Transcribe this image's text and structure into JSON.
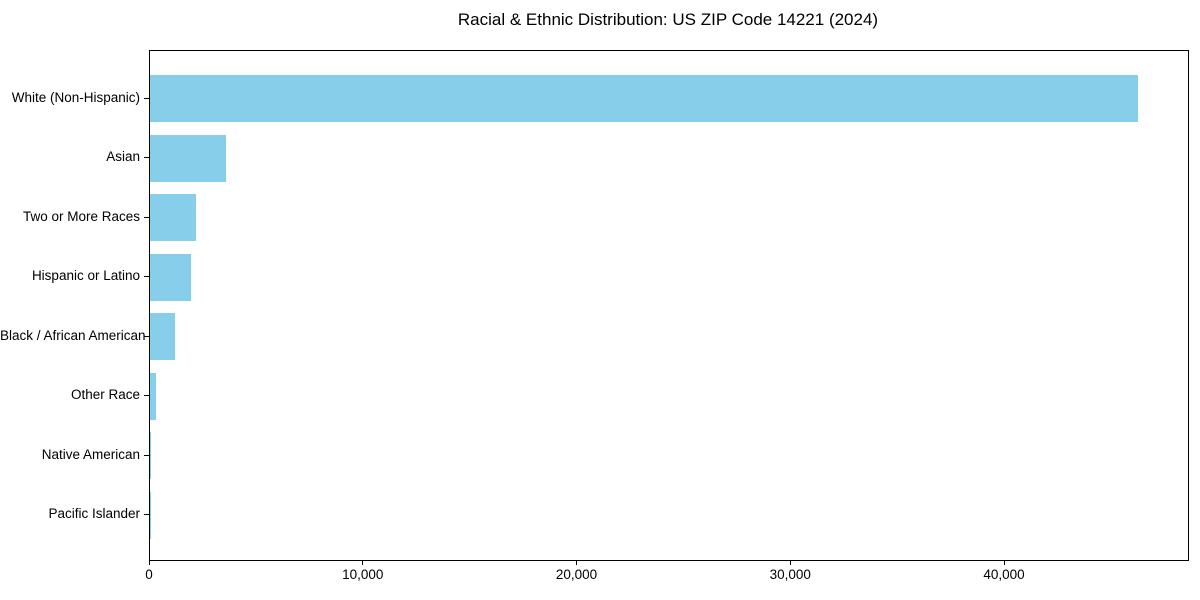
{
  "title": "Racial & Ethnic Distribution: US ZIP Code 14221 (2024)",
  "chart_data": {
    "type": "bar",
    "orientation": "horizontal",
    "title": "Racial & Ethnic Distribution: US ZIP Code 14221 (2024)",
    "categories": [
      "White (Non-Hispanic)",
      "Asian",
      "Two or More Races",
      "Hispanic or Latino",
      "Black / African American",
      "Other Race",
      "Native American",
      "Pacific Islander"
    ],
    "values": [
      46200,
      3550,
      2140,
      1920,
      1170,
      270,
      60,
      15
    ],
    "xlabel": "",
    "ylabel": "",
    "xlim": [
      0,
      48560
    ],
    "x_ticks": [
      0,
      10000,
      20000,
      30000,
      40000
    ],
    "x_tick_labels": [
      "0",
      "10,000",
      "20,000",
      "30,000",
      "40,000"
    ],
    "bar_color": "#87CEEB",
    "axis_color": "#000000",
    "background_color": "#ffffff",
    "grid": false,
    "legend": null
  }
}
